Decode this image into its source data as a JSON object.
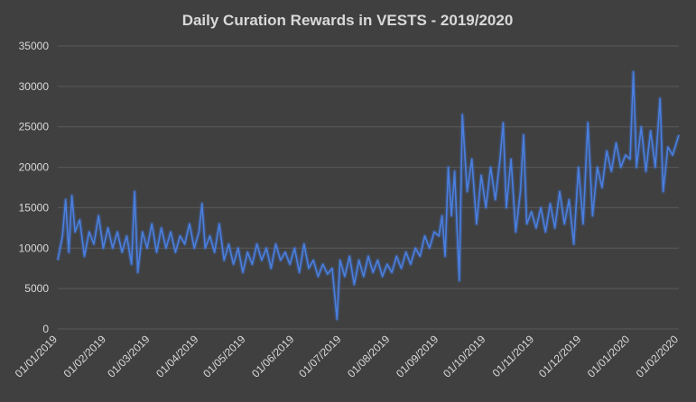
{
  "chart_data": {
    "type": "line",
    "title": "Daily Curation Rewards in VESTS - 2019/2020",
    "xlabel": "",
    "ylabel": "",
    "ylim": [
      0,
      35000
    ],
    "y_ticks": [
      "0",
      "5000",
      "10000",
      "15000",
      "20000",
      "25000",
      "30000",
      "35000"
    ],
    "x_ticks": [
      "01/01/2019",
      "01/02/2019",
      "01/03/2019",
      "01/04/2019",
      "01/05/2019",
      "01/06/2019",
      "01/07/2019",
      "01/08/2019",
      "01/09/2019",
      "01/10/2019",
      "01/11/2019",
      "01/12/2019",
      "01/01/2020",
      "01/02/2020"
    ],
    "x_range": [
      "2019-01-01",
      "2020-02-01"
    ],
    "grid": true,
    "legend": "none",
    "series": [
      {
        "color": "#4472c4",
        "points": [
          [
            "2019-01-01",
            8500
          ],
          [
            "2019-01-04",
            11500
          ],
          [
            "2019-01-06",
            16000
          ],
          [
            "2019-01-08",
            9500
          ],
          [
            "2019-01-10",
            16500
          ],
          [
            "2019-01-12",
            12000
          ],
          [
            "2019-01-15",
            13500
          ],
          [
            "2019-01-18",
            9000
          ],
          [
            "2019-01-21",
            12000
          ],
          [
            "2019-01-24",
            10500
          ],
          [
            "2019-01-27",
            14000
          ],
          [
            "2019-01-30",
            10000
          ],
          [
            "2019-02-02",
            12500
          ],
          [
            "2019-02-05",
            10000
          ],
          [
            "2019-02-08",
            12000
          ],
          [
            "2019-02-11",
            9500
          ],
          [
            "2019-02-14",
            11500
          ],
          [
            "2019-02-17",
            8000
          ],
          [
            "2019-02-19",
            17000
          ],
          [
            "2019-02-21",
            7000
          ],
          [
            "2019-02-24",
            12000
          ],
          [
            "2019-02-27",
            10000
          ],
          [
            "2019-03-02",
            13000
          ],
          [
            "2019-03-05",
            9500
          ],
          [
            "2019-03-08",
            12500
          ],
          [
            "2019-03-11",
            10000
          ],
          [
            "2019-03-14",
            12000
          ],
          [
            "2019-03-17",
            9500
          ],
          [
            "2019-03-20",
            11500
          ],
          [
            "2019-03-23",
            10500
          ],
          [
            "2019-03-26",
            13000
          ],
          [
            "2019-03-29",
            10000
          ],
          [
            "2019-04-01",
            12000
          ],
          [
            "2019-04-03",
            15500
          ],
          [
            "2019-04-05",
            10000
          ],
          [
            "2019-04-08",
            11500
          ],
          [
            "2019-04-11",
            9500
          ],
          [
            "2019-04-14",
            13000
          ],
          [
            "2019-04-17",
            8500
          ],
          [
            "2019-04-20",
            10500
          ],
          [
            "2019-04-23",
            8000
          ],
          [
            "2019-04-26",
            10000
          ],
          [
            "2019-04-29",
            7000
          ],
          [
            "2019-05-02",
            9500
          ],
          [
            "2019-05-05",
            8000
          ],
          [
            "2019-05-08",
            10500
          ],
          [
            "2019-05-11",
            8500
          ],
          [
            "2019-05-14",
            10000
          ],
          [
            "2019-05-17",
            7500
          ],
          [
            "2019-05-20",
            10500
          ],
          [
            "2019-05-23",
            8500
          ],
          [
            "2019-05-26",
            9500
          ],
          [
            "2019-05-29",
            8000
          ],
          [
            "2019-06-01",
            10000
          ],
          [
            "2019-06-04",
            7000
          ],
          [
            "2019-06-07",
            10500
          ],
          [
            "2019-06-10",
            7500
          ],
          [
            "2019-06-13",
            8500
          ],
          [
            "2019-06-16",
            6500
          ],
          [
            "2019-06-19",
            8000
          ],
          [
            "2019-06-22",
            6800
          ],
          [
            "2019-06-25",
            7500
          ],
          [
            "2019-06-28",
            1200
          ],
          [
            "2019-06-30",
            8500
          ],
          [
            "2019-07-03",
            6500
          ],
          [
            "2019-07-06",
            9000
          ],
          [
            "2019-07-09",
            5500
          ],
          [
            "2019-07-12",
            8500
          ],
          [
            "2019-07-15",
            6500
          ],
          [
            "2019-07-18",
            9000
          ],
          [
            "2019-07-21",
            7000
          ],
          [
            "2019-07-24",
            8500
          ],
          [
            "2019-07-27",
            6500
          ],
          [
            "2019-07-30",
            8000
          ],
          [
            "2019-08-02",
            7000
          ],
          [
            "2019-08-05",
            9000
          ],
          [
            "2019-08-08",
            7500
          ],
          [
            "2019-08-11",
            9500
          ],
          [
            "2019-08-14",
            8000
          ],
          [
            "2019-08-17",
            10000
          ],
          [
            "2019-08-20",
            9000
          ],
          [
            "2019-08-23",
            11500
          ],
          [
            "2019-08-26",
            10000
          ],
          [
            "2019-08-29",
            12000
          ],
          [
            "2019-09-01",
            11500
          ],
          [
            "2019-09-03",
            14000
          ],
          [
            "2019-09-05",
            9000
          ],
          [
            "2019-09-07",
            20000
          ],
          [
            "2019-09-09",
            14000
          ],
          [
            "2019-09-11",
            19500
          ],
          [
            "2019-09-14",
            6000
          ],
          [
            "2019-09-16",
            26500
          ],
          [
            "2019-09-19",
            17000
          ],
          [
            "2019-09-22",
            21000
          ],
          [
            "2019-09-25",
            13000
          ],
          [
            "2019-09-28",
            19000
          ],
          [
            "2019-10-01",
            15000
          ],
          [
            "2019-10-04",
            20000
          ],
          [
            "2019-10-07",
            16000
          ],
          [
            "2019-10-10",
            21000
          ],
          [
            "2019-10-12",
            25500
          ],
          [
            "2019-10-14",
            15000
          ],
          [
            "2019-10-17",
            21000
          ],
          [
            "2019-10-20",
            12000
          ],
          [
            "2019-10-23",
            17000
          ],
          [
            "2019-10-25",
            24000
          ],
          [
            "2019-10-27",
            13000
          ],
          [
            "2019-10-30",
            14500
          ],
          [
            "2019-11-02",
            12500
          ],
          [
            "2019-11-05",
            15000
          ],
          [
            "2019-11-08",
            12000
          ],
          [
            "2019-11-11",
            15500
          ],
          [
            "2019-11-14",
            12500
          ],
          [
            "2019-11-17",
            17000
          ],
          [
            "2019-11-20",
            13000
          ],
          [
            "2019-11-23",
            16000
          ],
          [
            "2019-11-26",
            10500
          ],
          [
            "2019-11-29",
            20000
          ],
          [
            "2019-12-02",
            13000
          ],
          [
            "2019-12-05",
            25500
          ],
          [
            "2019-12-08",
            14000
          ],
          [
            "2019-12-11",
            20000
          ],
          [
            "2019-12-14",
            17500
          ],
          [
            "2019-12-17",
            22000
          ],
          [
            "2019-12-20",
            19500
          ],
          [
            "2019-12-23",
            23000
          ],
          [
            "2019-12-26",
            20000
          ],
          [
            "2019-12-29",
            21500
          ],
          [
            "2020-01-01",
            21000
          ],
          [
            "2020-01-03",
            31800
          ],
          [
            "2020-01-05",
            20000
          ],
          [
            "2020-01-08",
            25000
          ],
          [
            "2020-01-11",
            19500
          ],
          [
            "2020-01-14",
            24500
          ],
          [
            "2020-01-17",
            20000
          ],
          [
            "2020-01-20",
            28500
          ],
          [
            "2020-01-22",
            17000
          ],
          [
            "2020-01-25",
            22500
          ],
          [
            "2020-01-28",
            21500
          ],
          [
            "2020-02-01",
            24000
          ]
        ]
      }
    ]
  }
}
